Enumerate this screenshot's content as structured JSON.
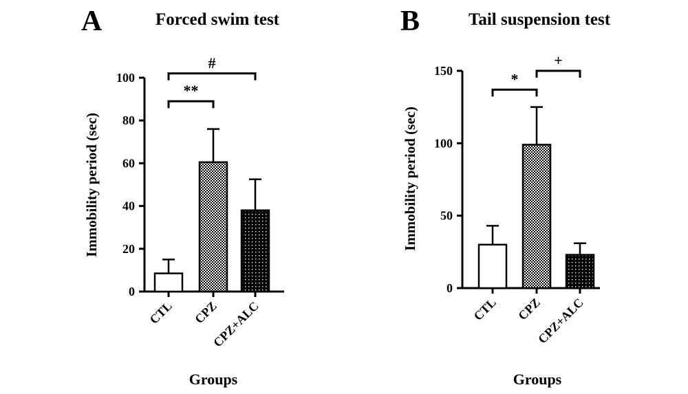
{
  "chart_data": [
    {
      "type": "bar",
      "panel": "A",
      "title": "Forced swim test",
      "xlabel": "Groups",
      "ylabel": "Immobility period (sec)",
      "ylim": [
        0,
        100
      ],
      "yticks": [
        "0",
        "20",
        "40",
        "60",
        "80",
        "100"
      ],
      "categories": [
        "CTL",
        "CPZ",
        "CPZ+ALC"
      ],
      "values": [
        8.5,
        60.5,
        38
      ],
      "errors": [
        6.5,
        15.5,
        14.5
      ],
      "fills": [
        "white",
        "checker",
        "dotted"
      ],
      "significance": [
        {
          "from": 0,
          "to": 1,
          "label": "**",
          "y": 89
        },
        {
          "from": 0,
          "to": 2,
          "label": "#",
          "y": 102
        }
      ]
    },
    {
      "type": "bar",
      "panel": "B",
      "title": "Tail suspension test",
      "xlabel": "Groups",
      "ylabel": "Immobility period (sec)",
      "ylim": [
        0,
        150
      ],
      "yticks": [
        "0",
        "50",
        "100",
        "150"
      ],
      "categories": [
        "CTL",
        "CPZ",
        "CPZ+ALC"
      ],
      "values": [
        30,
        99,
        23
      ],
      "errors": [
        13,
        26,
        8
      ],
      "fills": [
        "white",
        "checker",
        "dotted"
      ],
      "significance": [
        {
          "from": 0,
          "to": 1,
          "label": "*",
          "y": 137
        },
        {
          "from": 1,
          "to": 2,
          "label": "+",
          "y": 150
        }
      ]
    }
  ],
  "colors": {
    "ink": "#000000",
    "background": "#ffffff"
  }
}
